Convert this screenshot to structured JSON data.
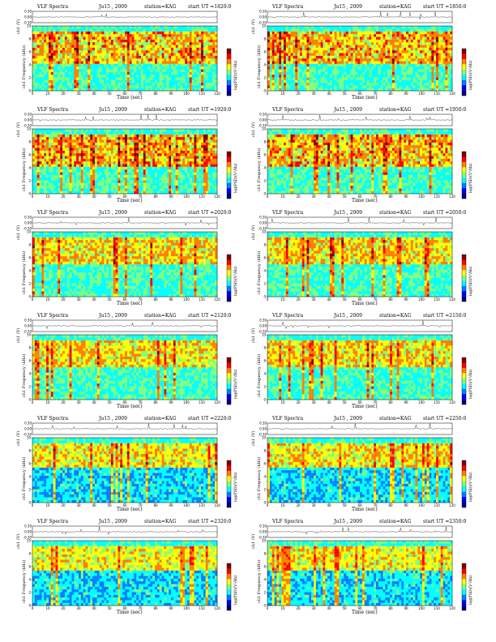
{
  "figure": {
    "title": "VLF Spectra",
    "date": "Ju15 , 2009",
    "station_label": "station=KAG",
    "start_label": "start  UT =",
    "start_times": [
      "1820:0",
      "1850:0",
      "1920:0",
      "1950:0",
      "2020:0",
      "2050:0",
      "2120:0",
      "2150:0",
      "2220:0",
      "2250:0",
      "2320:0",
      "2350:0"
    ]
  },
  "labels": {
    "waveform_ylabel": "ch1 (V)",
    "spectrogram_ylabel_channel": "ch1",
    "spectrogram_ylabel": "Frequency  (kHz)",
    "xlabel": "Time  (sec)",
    "colorbar_label": "log(PSD)(V²/Hz)"
  },
  "colors": {
    "colormap": [
      "#00007f",
      "#0000ff",
      "#007fff",
      "#00ffff",
      "#7fff7f",
      "#ffff00",
      "#ff7f00",
      "#ff0000",
      "#7f0000"
    ],
    "axis": "#000000"
  },
  "chart_data": {
    "type": "heatmap",
    "panel_count": 12,
    "layout": "6 rows x 2 columns",
    "x": {
      "label": "Time  (sec)",
      "lim": [
        0,
        120
      ],
      "ticks": [
        0,
        10,
        20,
        30,
        40,
        50,
        60,
        70,
        80,
        90,
        100,
        110,
        120
      ]
    },
    "y": {
      "label": "Frequency  (kHz)",
      "lim": [
        0,
        10
      ],
      "ticks": [
        0,
        2,
        4,
        6,
        8,
        10
      ]
    },
    "waveform": {
      "label": "ch1 (V)",
      "lim": [
        -0.3,
        0.3
      ],
      "ticks": [
        0.3,
        0.0,
        -0.3
      ],
      "tick_labels": [
        "0.30",
        "0.00",
        "-0.30"
      ]
    },
    "colorbar": {
      "label": "log(PSD)(V²/Hz)"
    },
    "panels_sferic_band_khz": [
      {
        "start": "1820:0",
        "band": [
          4,
          9.3
        ],
        "intensity": 0.9
      },
      {
        "start": "1850:0",
        "band": [
          4,
          9.3
        ],
        "intensity": 0.9
      },
      {
        "start": "1920:0",
        "band": [
          4,
          9.3
        ],
        "intensity": 0.95
      },
      {
        "start": "1950:0",
        "band": [
          4,
          9.3
        ],
        "intensity": 0.9
      },
      {
        "start": "2020:0",
        "band": [
          5,
          9.3
        ],
        "intensity": 0.75
      },
      {
        "start": "2050:0",
        "band": [
          5,
          9.3
        ],
        "intensity": 0.75
      },
      {
        "start": "2120:0",
        "band": [
          5,
          9.3
        ],
        "intensity": 0.7
      },
      {
        "start": "2150:0",
        "band": [
          5,
          9.3
        ],
        "intensity": 0.7
      },
      {
        "start": "2220:0",
        "band": [
          5.5,
          9.3
        ],
        "intensity": 0.65
      },
      {
        "start": "2250:0",
        "band": [
          5.5,
          9.3
        ],
        "intensity": 0.65
      },
      {
        "start": "2320:0",
        "band": [
          5.5,
          9.3
        ],
        "intensity": 0.55
      },
      {
        "start": "2350:0",
        "band": [
          5.5,
          9.3
        ],
        "intensity": 0.6
      }
    ]
  }
}
